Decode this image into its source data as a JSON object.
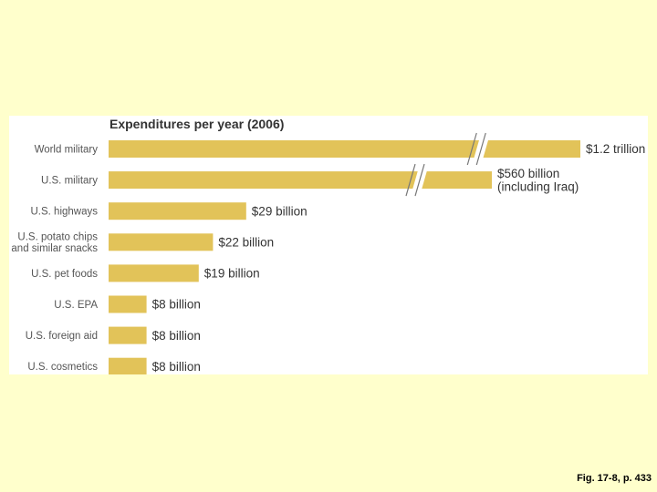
{
  "colors": {
    "background": "#ffffcc",
    "panel": "#ffffff",
    "bar": "#e2c359",
    "text": "#333333"
  },
  "caption": "Fig. 17-8, p. 433",
  "chart_data": {
    "type": "bar",
    "orientation": "horizontal",
    "title": "Expenditures per year (2006)",
    "xlabel": "",
    "ylabel": "",
    "units": "billion US dollars",
    "categories": [
      "World military",
      "U.S. military",
      "U.S. highways",
      "U.S. potato chips and similar snacks",
      "U.S. pet foods",
      "U.S. EPA",
      "U.S. foreign aid",
      "U.S. cosmetics"
    ],
    "category_lines": [
      [
        "World military"
      ],
      [
        "U.S. military"
      ],
      [
        "U.S. highways"
      ],
      [
        "U.S. potato chips",
        "and similar snacks"
      ],
      [
        "U.S. pet foods"
      ],
      [
        "U.S. EPA"
      ],
      [
        "U.S. foreign aid"
      ],
      [
        "U.S. cosmetics"
      ]
    ],
    "values": [
      1200,
      560,
      29,
      22,
      19,
      8,
      8,
      8
    ],
    "value_labels": [
      [
        "$1.2 trillion"
      ],
      [
        "$560 billion",
        "(including Iraq)"
      ],
      [
        "$29 billion"
      ],
      [
        "$22 billion"
      ],
      [
        "$19 billion"
      ],
      [
        "$8 billion"
      ],
      [
        "$8 billion"
      ],
      [
        "$8 billion"
      ]
    ],
    "axis_breaks": [
      true,
      true,
      false,
      false,
      false,
      false,
      false,
      false
    ],
    "grid": false,
    "legend": "none"
  }
}
